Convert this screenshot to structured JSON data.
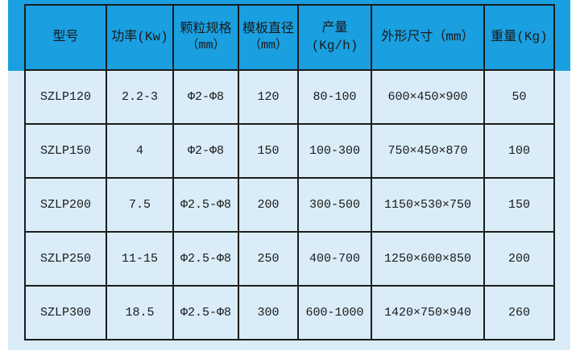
{
  "chart_data": {
    "type": "table",
    "columns": [
      {
        "key": "model",
        "line1": "型号",
        "line2": ""
      },
      {
        "key": "power",
        "line1": "功率(Kw)",
        "line2": ""
      },
      {
        "key": "pellet-spec",
        "line1": "颗粒规格",
        "line2": "（mm）"
      },
      {
        "key": "die-diameter",
        "line1": "模板直径",
        "line2": "（mm）"
      },
      {
        "key": "output",
        "line1": "产量(Kg/h)",
        "line2": ""
      },
      {
        "key": "dimensions",
        "line1": "外形尺寸（mm）",
        "line2": ""
      },
      {
        "key": "weight",
        "line1": "重量(Kg)",
        "line2": ""
      }
    ],
    "rows": [
      [
        "SZLP120",
        "2.2-3",
        "Φ2-Φ8",
        "120",
        "80-100",
        "600×450×900",
        "50"
      ],
      [
        "SZLP150",
        "4",
        "Φ2-Φ8",
        "150",
        "100-300",
        "750×450×870",
        "100"
      ],
      [
        "SZLP200",
        "7.5",
        "Φ2.5-Φ8",
        "200",
        "300-500",
        "1150×530×750",
        "150"
      ],
      [
        "SZLP250",
        "11-15",
        "Φ2.5-Φ8",
        "250",
        "400-700",
        "1250×600×850",
        "200"
      ],
      [
        "SZLP300",
        "18.5",
        "Φ2.5-Φ8",
        "300",
        "600-1000",
        "1420×750×940",
        "260"
      ]
    ]
  },
  "colors": {
    "header_bg": "#1A9FE0",
    "row_bg": "#D9ECF8",
    "border": "#1C1C1C",
    "text": "#1A1A1A",
    "page_bg": "#FFFFFF"
  }
}
